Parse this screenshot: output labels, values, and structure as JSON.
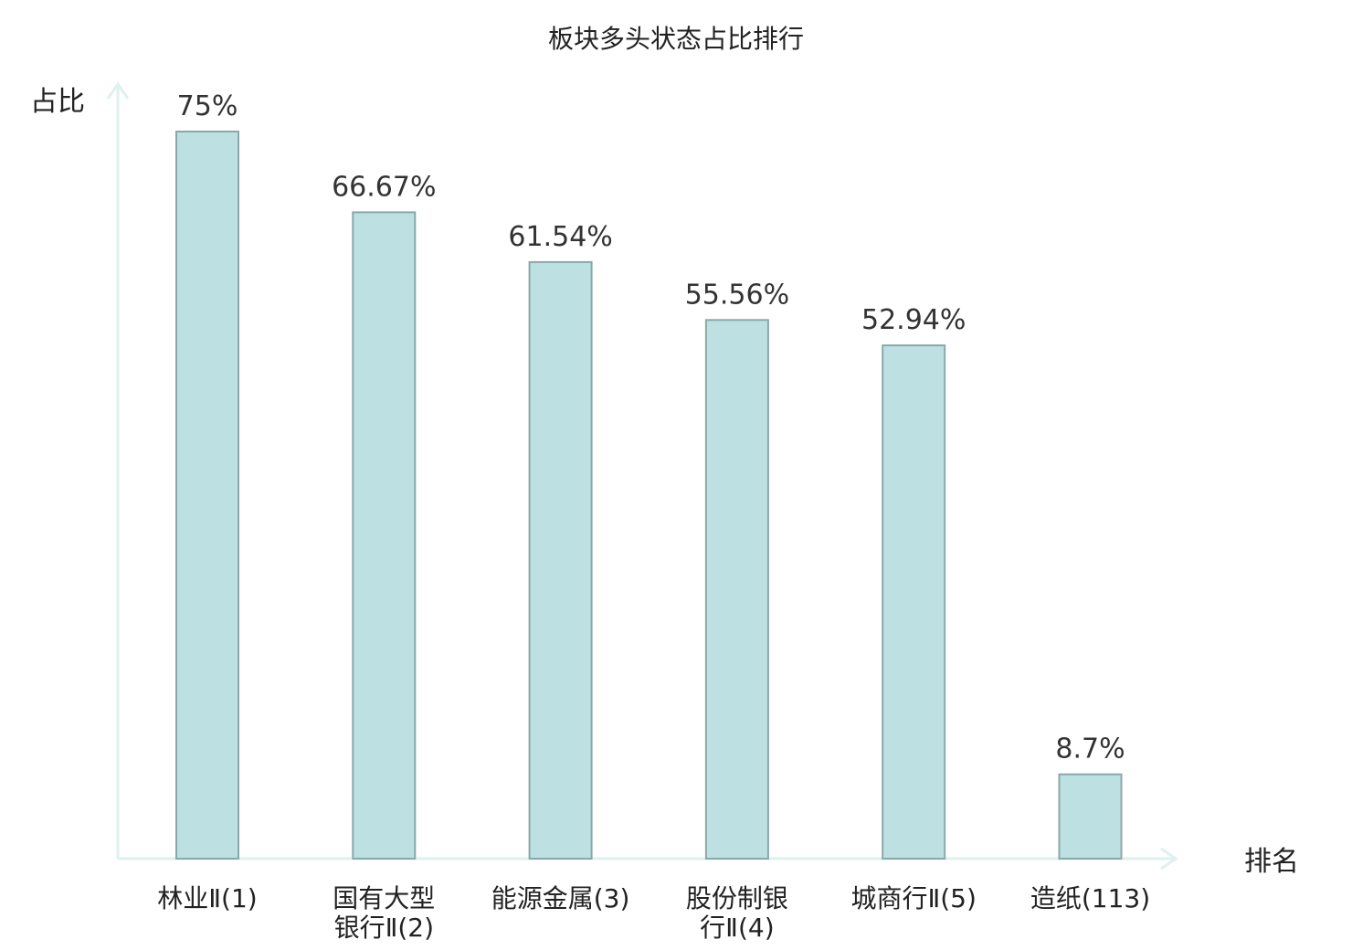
{
  "chart_data": {
    "type": "bar",
    "title": "板块多头状态占比排行",
    "ylabel": "占比",
    "xlabel": "排名",
    "ylim": [
      0,
      80
    ],
    "grid": false,
    "categories": [
      [
        "林业Ⅱ(1)"
      ],
      [
        "国有大型",
        "银行Ⅱ(2)"
      ],
      [
        "能源金属(3)"
      ],
      [
        "股份制银",
        "行Ⅱ(4)"
      ],
      [
        "城商行Ⅱ(5)"
      ],
      [
        "造纸(113)"
      ]
    ],
    "values": [
      75,
      66.67,
      61.54,
      55.56,
      52.94,
      8.7
    ],
    "value_labels": [
      "75%",
      "66.67%",
      "61.54%",
      "55.56%",
      "52.94%",
      "8.7%"
    ],
    "highlight_index": 5
  },
  "colors": {
    "bar_fill": "#bde0e3",
    "bar_stroke": "#8aa8aa",
    "axis": "#dff1ee",
    "highlight_text": "#e01b1b",
    "text": "#222222"
  }
}
